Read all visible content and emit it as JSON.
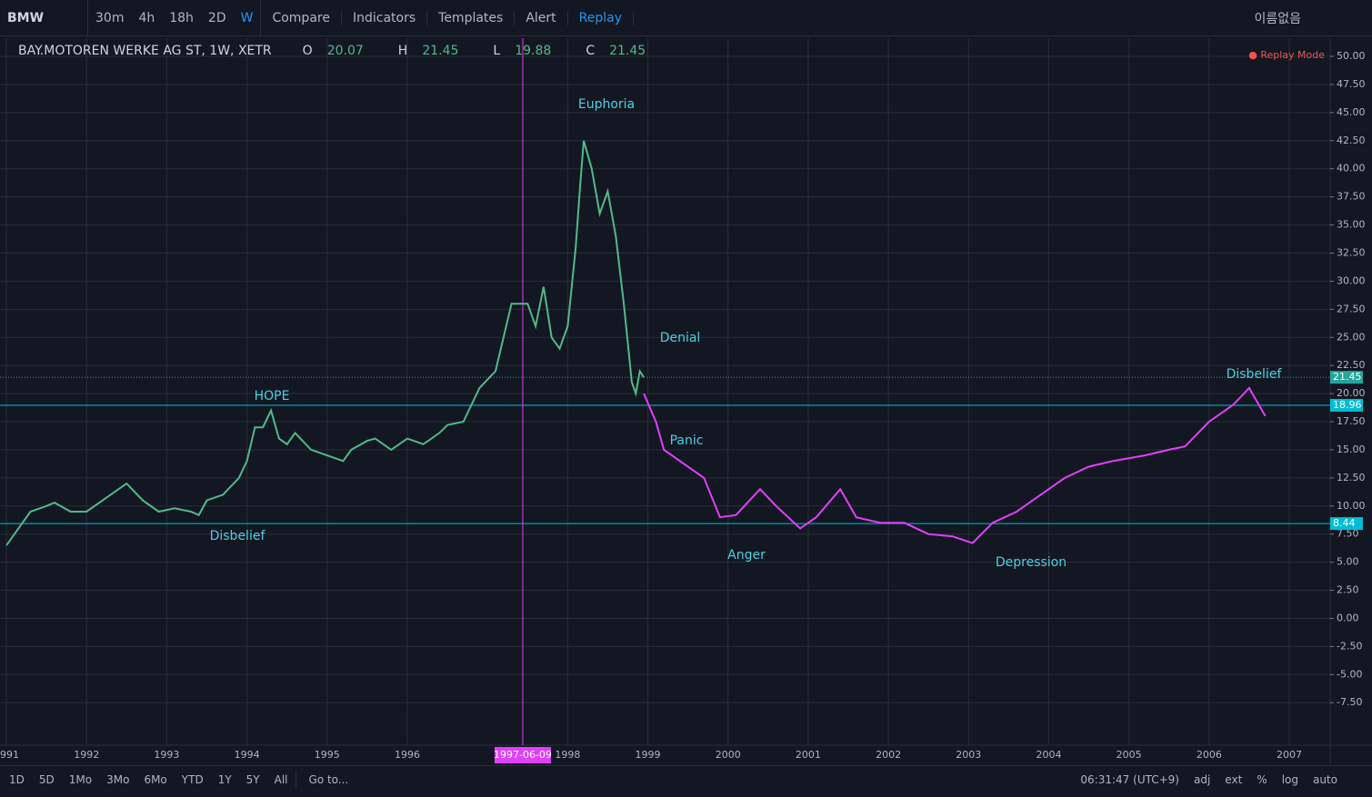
{
  "toolbar": {
    "symbol": "BMW",
    "intervals": [
      "30m",
      "4h",
      "18h",
      "2D",
      "W"
    ],
    "buttons": [
      "Compare",
      "Indicators",
      "Templates",
      "Alert",
      "Replay"
    ],
    "layout_name": "이름없음"
  },
  "legend": {
    "title": "BAY.MOTOREN WERKE AG ST, 1W, XETR",
    "ohlc": [
      {
        "label": "O",
        "value": "20.07"
      },
      {
        "label": "H",
        "value": "21.45"
      },
      {
        "label": "L",
        "value": "19.88"
      },
      {
        "label": "C",
        "value": "21.45"
      }
    ]
  },
  "replay_mode": "Replay Mode",
  "chart_data": {
    "type": "line",
    "xlim": [
      1990.92,
      2007.51
    ],
    "xticks": [
      1991,
      1992,
      1993,
      1994,
      1995,
      1996,
      1998,
      1999,
      2000,
      2001,
      2002,
      2003,
      2004,
      2005,
      2006,
      2007
    ],
    "ylim": [
      -11.28,
      51.62
    ],
    "yticks": [
      {
        "value": 50,
        "label": "50.00"
      },
      {
        "value": 47.5,
        "label": "47.50"
      },
      {
        "value": 45,
        "label": "45.00"
      },
      {
        "value": 42.5,
        "label": "42.50"
      },
      {
        "value": 40,
        "label": "40.00"
      },
      {
        "value": 37.5,
        "label": "37.50"
      },
      {
        "value": 35,
        "label": "35.00"
      },
      {
        "value": 32.5,
        "label": "32.50"
      },
      {
        "value": 30,
        "label": "30.00"
      },
      {
        "value": 27.5,
        "label": "27.50"
      },
      {
        "value": 25,
        "label": "25.00"
      },
      {
        "value": 22.5,
        "label": "22.50"
      },
      {
        "value": 20,
        "label": "20.00"
      },
      {
        "value": 17.5,
        "label": "17.50"
      },
      {
        "value": 15,
        "label": "15.00"
      },
      {
        "value": 12.5,
        "label": "12.50"
      },
      {
        "value": 10,
        "label": "10.00"
      },
      {
        "value": 7.5,
        "label": "7.50"
      },
      {
        "value": 5,
        "label": "5.00"
      },
      {
        "value": 2.5,
        "label": "2.50"
      },
      {
        "value": 0,
        "label": "0.00"
      },
      {
        "value": -2.5,
        "label": "-2.50"
      },
      {
        "value": -5,
        "label": "-5.00"
      },
      {
        "value": -7.5,
        "label": "-7.50"
      }
    ],
    "grid": true,
    "series": [
      {
        "color": "#53b987",
        "x": [
          1991.0,
          1991.1,
          1991.2,
          1991.3,
          1991.5,
          1991.6,
          1991.8,
          1992.0,
          1992.2,
          1992.4,
          1992.5,
          1992.7,
          1992.9,
          1993.1,
          1993.3,
          1993.4,
          1993.5,
          1993.7,
          1993.9,
          1994.0,
          1994.1,
          1994.2,
          1994.3,
          1994.4,
          1994.5,
          1994.6,
          1994.8,
          1995.0,
          1995.2,
          1995.3,
          1995.5,
          1995.6,
          1995.8,
          1996.0,
          1996.2,
          1996.4,
          1996.5,
          1996.7,
          1996.8,
          1996.9,
          1997.1,
          1997.2,
          1997.3,
          1997.5,
          1997.6,
          1997.7,
          1997.8,
          1997.9,
          1998.0,
          1998.1,
          1998.15,
          1998.2,
          1998.3,
          1998.4,
          1998.5,
          1998.6,
          1998.7,
          1998.8,
          1998.85,
          1998.9,
          1998.95
        ],
        "values": [
          6.5,
          7.5,
          8.5,
          9.5,
          10,
          10.3,
          9.5,
          9.5,
          10.5,
          11.5,
          12,
          10.5,
          9.5,
          9.8,
          9.5,
          9.2,
          10.5,
          11,
          12.5,
          14,
          17,
          17,
          18.5,
          16,
          15.5,
          16.5,
          15,
          14.5,
          14,
          15,
          15.8,
          16,
          15,
          16,
          15.5,
          16.5,
          17.2,
          17.5,
          19,
          20.5,
          22,
          25,
          28,
          28,
          26,
          29.5,
          25,
          24,
          26,
          33,
          38,
          42.5,
          40,
          36,
          38,
          34,
          28,
          21,
          20,
          22,
          21.45
        ]
      },
      {
        "color": "#e040fb",
        "x": [
          1998.95,
          1999.1,
          1999.2,
          1999.5,
          1999.7,
          1999.9,
          2000.1,
          2000.4,
          2000.6,
          2000.9,
          2001.1,
          2001.4,
          2001.6,
          2001.9,
          2002.2,
          2002.5,
          2002.8,
          2003.05,
          2003.3,
          2003.6,
          2003.9,
          2004.2,
          2004.5,
          2004.8,
          2005.2,
          2005.5,
          2005.7,
          2006.0,
          2006.3,
          2006.5,
          2006.7
        ],
        "values": [
          20,
          17.5,
          15,
          13.5,
          12.5,
          9,
          9.2,
          11.5,
          10,
          8,
          9,
          11.5,
          9,
          8.5,
          8.5,
          7.5,
          7.3,
          6.7,
          8.5,
          9.5,
          11,
          12.5,
          13.5,
          14,
          14.5,
          15,
          15.3,
          17.5,
          19,
          20.5,
          18
        ]
      }
    ],
    "price_lines": [
      21.45,
      18.96,
      8.44
    ],
    "price_line_colors": [
      "#26a69a",
      "#00bcd4",
      "#00bcd4"
    ],
    "crosshair_x": {
      "value": 1997.44,
      "label": "1997-06-09"
    },
    "annotations": [
      "Euphoria",
      "Denial",
      "Panic",
      "Anger",
      "Depression",
      "Disbelief",
      "HOPE",
      "Disbelief"
    ]
  },
  "bottom_bar": {
    "ranges": [
      "1D",
      "5D",
      "1Mo",
      "3Mo",
      "6Mo",
      "YTD",
      "1Y",
      "5Y",
      "All"
    ],
    "goto": "Go to...",
    "clock": "06:31:47 (UTC+9)",
    "options": [
      "adj",
      "ext",
      "%",
      "log",
      "auto"
    ]
  }
}
